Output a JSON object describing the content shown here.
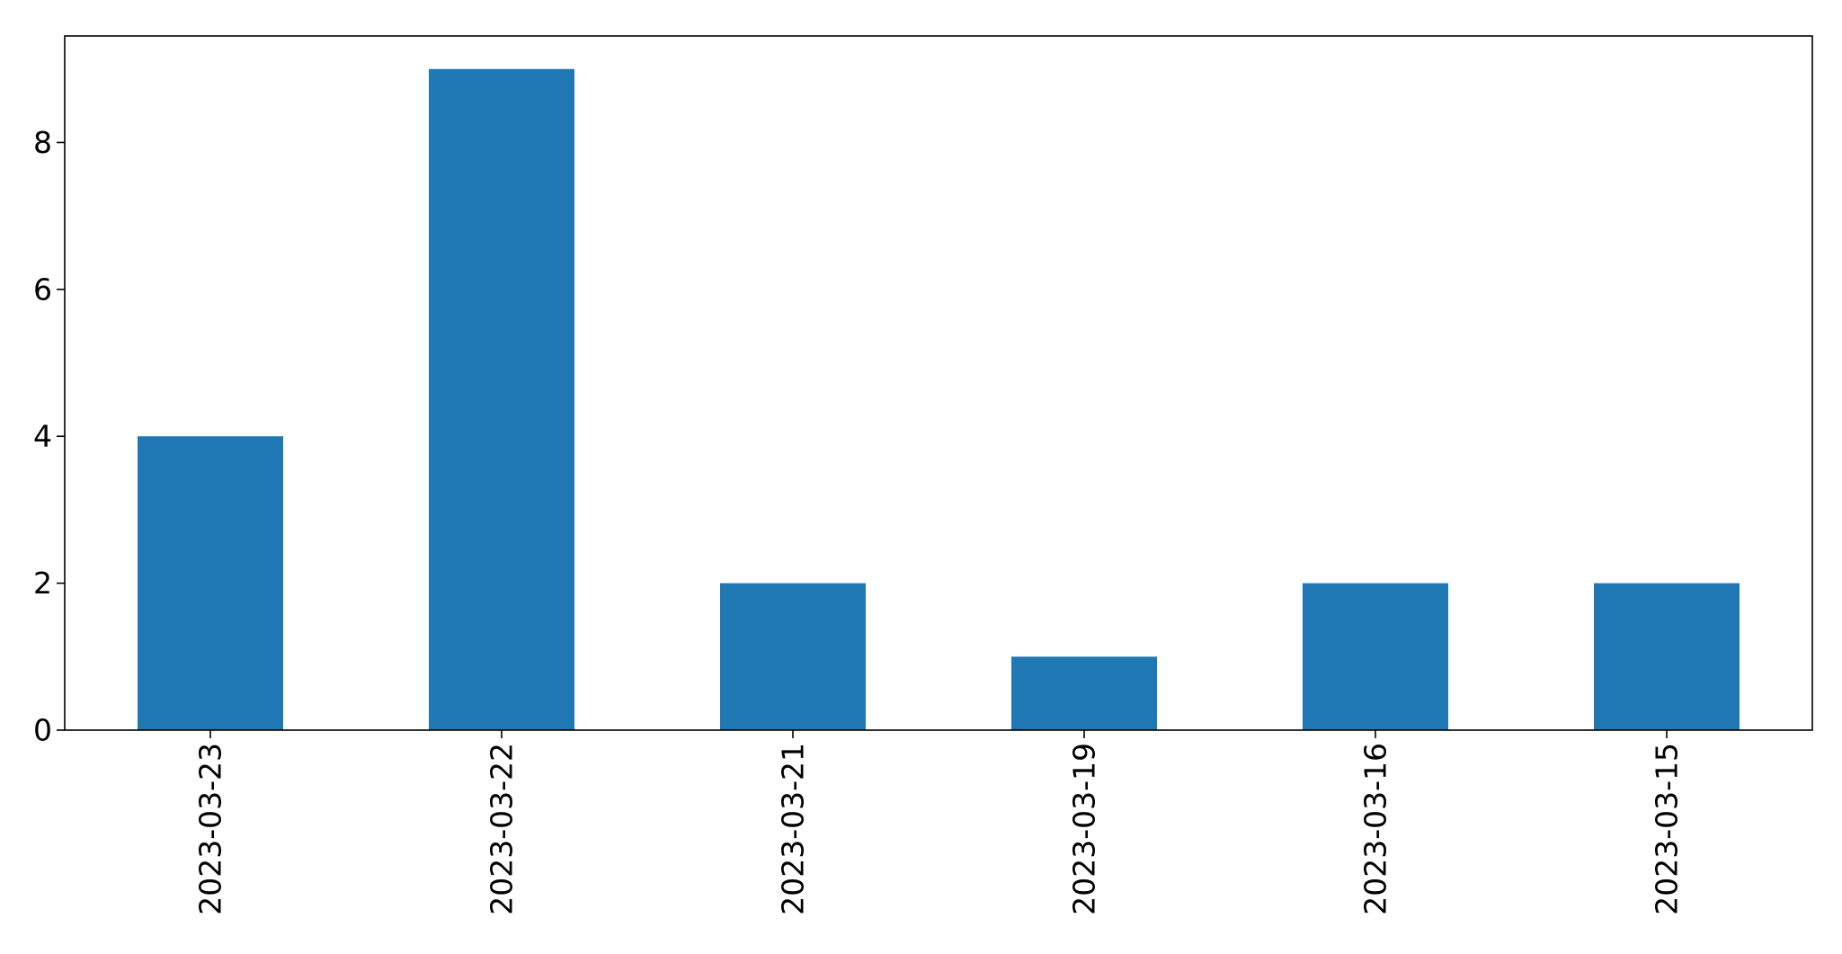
{
  "chart_data": {
    "type": "bar",
    "title": "",
    "xlabel": "",
    "ylabel": "",
    "categories": [
      "2023-03-23",
      "2023-03-22",
      "2023-03-21",
      "2023-03-19",
      "2023-03-16",
      "2023-03-15"
    ],
    "values": [
      4,
      9,
      2,
      1,
      2,
      2
    ],
    "ylim": [
      0,
      9.45
    ],
    "yticks": [
      0,
      2,
      4,
      6,
      8
    ],
    "grid": false,
    "legend": "none",
    "bar_color": "#1f77b4",
    "x_tick_rotation": "vertical"
  }
}
